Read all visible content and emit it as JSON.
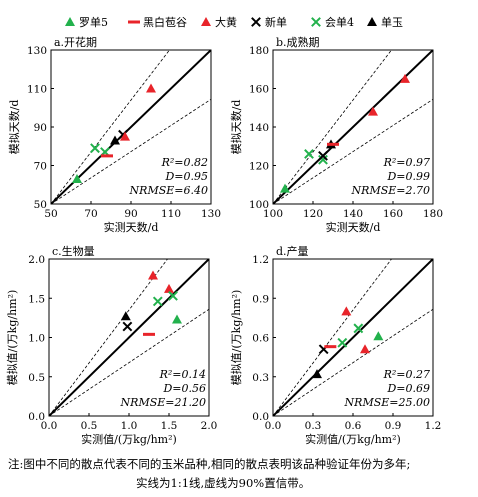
{
  "legend": [
    {
      "name": "罗单5",
      "marker": "triangle",
      "color": "#22b14c"
    },
    {
      "name": "黑白苞谷",
      "marker": "dash",
      "color": "#e8242a"
    },
    {
      "name": "大黄",
      "marker": "triangle",
      "color": "#e8242a"
    },
    {
      "name": "新单",
      "marker": "x",
      "color": "#000000"
    },
    {
      "name": "会单4",
      "marker": "x",
      "color": "#22b14c"
    },
    {
      "name": "单玉",
      "marker": "triangle",
      "color": "#000000"
    }
  ],
  "caption": {
    "line1": "注:图中不同的散点代表不同的玉米品种,相同的散点表明该品种验证年份为多年;",
    "line2": "实线为1:1线,虚线为90%置信带。"
  },
  "chart_data": [
    {
      "type": "scatter",
      "label": "a.开花期",
      "xlabel": "实测天数/d",
      "ylabel": "模拟天数/d",
      "xlim": [
        50,
        130
      ],
      "ylim": [
        50,
        130
      ],
      "xticks": [
        50,
        70,
        90,
        110,
        130
      ],
      "yticks": [
        50,
        70,
        90,
        110,
        130
      ],
      "reference": {
        "one_to_one": true,
        "confidence": "90%"
      },
      "stats": {
        "r2": "R²=0.82",
        "d": "D=0.95",
        "nrmse": "NRMSE=6.40"
      },
      "points": [
        {
          "series": "罗单5",
          "x": 63,
          "y": 63
        },
        {
          "series": "会单4",
          "x": 72,
          "y": 79
        },
        {
          "series": "会单4",
          "x": 77,
          "y": 77
        },
        {
          "series": "黑白苞谷",
          "x": 78,
          "y": 75
        },
        {
          "series": "单玉",
          "x": 82,
          "y": 83
        },
        {
          "series": "新单",
          "x": 86,
          "y": 86
        },
        {
          "series": "大黄",
          "x": 87,
          "y": 85
        },
        {
          "series": "大黄",
          "x": 100,
          "y": 110
        }
      ]
    },
    {
      "type": "scatter",
      "label": "b.成熟期",
      "xlabel": "实测天数/d",
      "ylabel": "模拟天数/d",
      "xlim": [
        100,
        180
      ],
      "ylim": [
        100,
        180
      ],
      "xticks": [
        100,
        120,
        140,
        160,
        180
      ],
      "yticks": [
        100,
        120,
        140,
        160,
        180
      ],
      "reference": {
        "one_to_one": true,
        "confidence": "90%"
      },
      "stats": {
        "r2": "R²=0.97",
        "d": "D=0.99",
        "nrmse": "NRMSE=2.70"
      },
      "points": [
        {
          "series": "罗单5",
          "x": 106,
          "y": 108
        },
        {
          "series": "会单4",
          "x": 118,
          "y": 126
        },
        {
          "series": "会单4",
          "x": 125,
          "y": 123
        },
        {
          "series": "新单",
          "x": 125,
          "y": 125
        },
        {
          "series": "单玉",
          "x": 129,
          "y": 131
        },
        {
          "series": "黑白苞谷",
          "x": 130,
          "y": 131
        },
        {
          "series": "大黄",
          "x": 150,
          "y": 148
        },
        {
          "series": "大黄",
          "x": 166,
          "y": 165
        }
      ]
    },
    {
      "type": "scatter",
      "label": "c.生物量",
      "xlabel": "实测值/(万kg/hm²)",
      "ylabel": "模拟值/(万kg/hm²)",
      "xlim": [
        0,
        2
      ],
      "ylim": [
        0,
        2
      ],
      "xticks": [
        "0.0",
        "0.5",
        "1.0",
        "1.5",
        "2.0"
      ],
      "yticks": [
        "0.0",
        "0.5",
        "1.0",
        "1.5",
        "2.0"
      ],
      "reference": {
        "one_to_one": true,
        "confidence": "90%"
      },
      "stats": {
        "r2": "R²=0.14",
        "d": "D=0.56",
        "nrmse": "NRMSE=21.20"
      },
      "points": [
        {
          "series": "单玉",
          "x": 0.96,
          "y": 1.27
        },
        {
          "series": "新单",
          "x": 0.98,
          "y": 1.14
        },
        {
          "series": "黑白苞谷",
          "x": 1.25,
          "y": 1.04
        },
        {
          "series": "大黄",
          "x": 1.3,
          "y": 1.79
        },
        {
          "series": "会单4",
          "x": 1.36,
          "y": 1.46
        },
        {
          "series": "大黄",
          "x": 1.5,
          "y": 1.62
        },
        {
          "series": "会单4",
          "x": 1.55,
          "y": 1.53
        },
        {
          "series": "罗单5",
          "x": 1.6,
          "y": 1.23
        }
      ]
    },
    {
      "type": "scatter",
      "label": "d.产量",
      "xlabel": "实测值/(万kg/hm²)",
      "ylabel": "模拟值/(万kg/hm²)",
      "xlim": [
        0,
        1.2
      ],
      "ylim": [
        0,
        1.2
      ],
      "xticks": [
        "0.0",
        "0.3",
        "0.6",
        "0.9",
        "1.2"
      ],
      "yticks": [
        "0.0",
        "0.3",
        "0.6",
        "0.9",
        "1.2"
      ],
      "reference": {
        "one_to_one": true,
        "confidence": "90%"
      },
      "stats": {
        "r2": "R²=0.27",
        "d": "D=0.69",
        "nrmse": "NRMSE=25.00"
      },
      "points": [
        {
          "series": "单玉",
          "x": 0.33,
          "y": 0.32
        },
        {
          "series": "新单",
          "x": 0.38,
          "y": 0.51
        },
        {
          "series": "黑白苞谷",
          "x": 0.43,
          "y": 0.53
        },
        {
          "series": "会单4",
          "x": 0.52,
          "y": 0.56
        },
        {
          "series": "大黄",
          "x": 0.55,
          "y": 0.8
        },
        {
          "series": "会单4",
          "x": 0.64,
          "y": 0.67
        },
        {
          "series": "大黄",
          "x": 0.69,
          "y": 0.51
        },
        {
          "series": "罗单5",
          "x": 0.79,
          "y": 0.61
        }
      ]
    }
  ]
}
